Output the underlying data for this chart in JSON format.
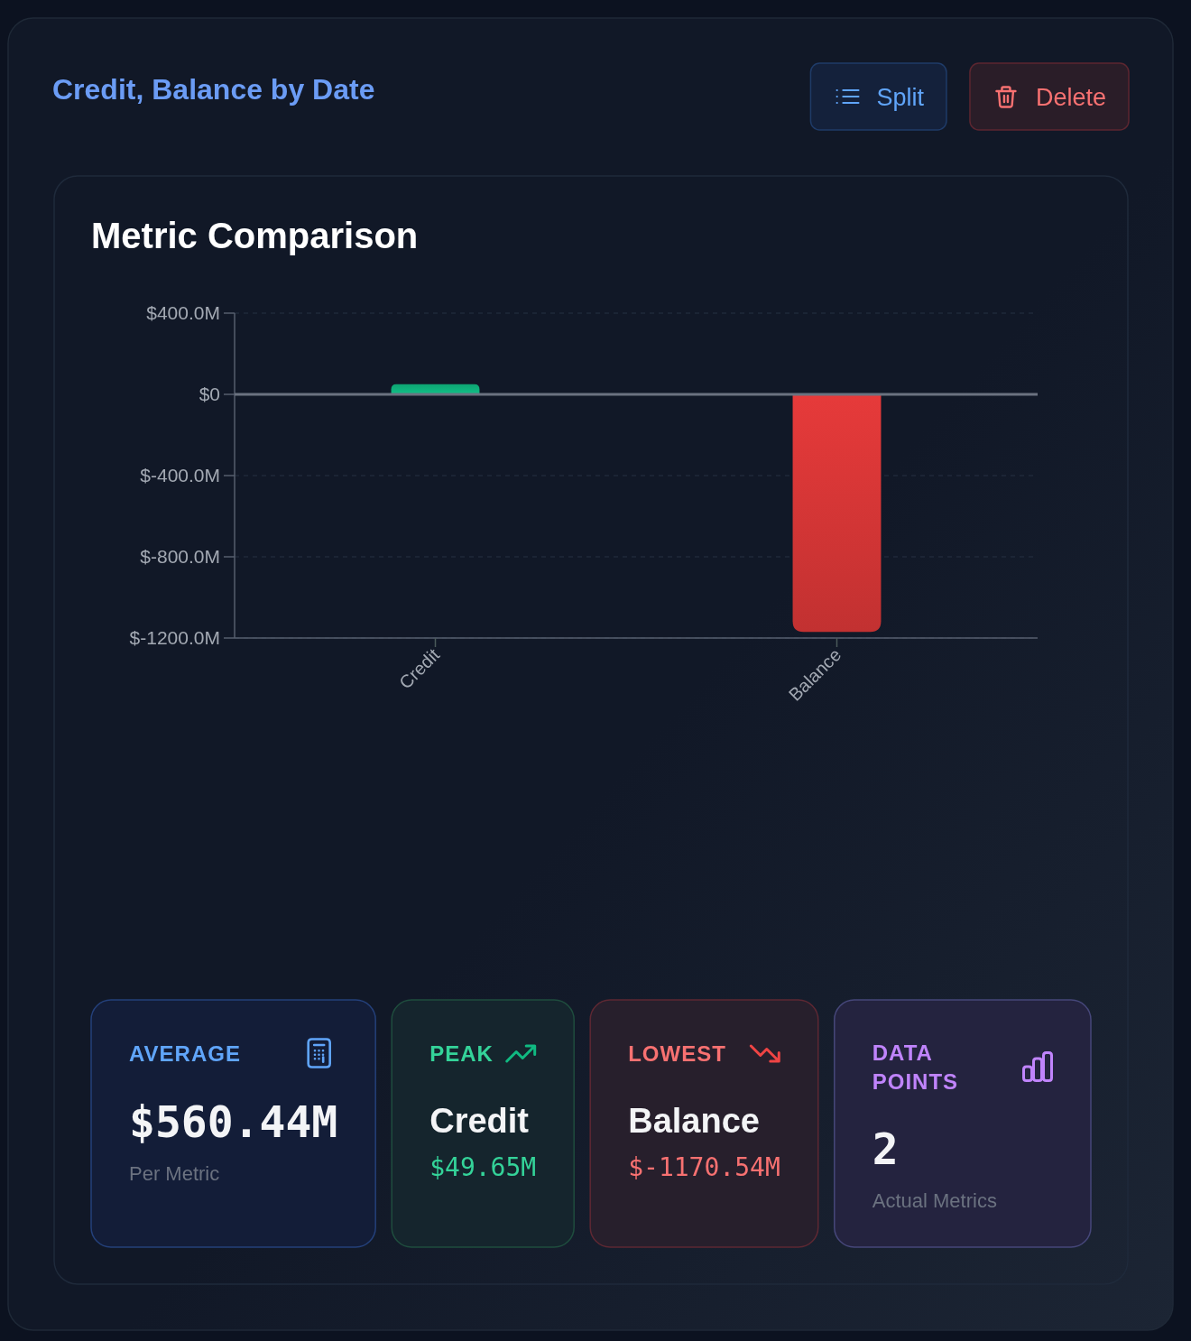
{
  "chart_data": [
    {
      "type": "bar",
      "title": "Credit, Balance by Date",
      "subtitle": "Metric Comparison",
      "annotations": [
        "Split",
        "Delete"
      ],
      "categories": [
        "Credit",
        "Balance"
      ],
      "values": [
        49.65,
        -1170.54
      ],
      "colors": [
        "#10b981",
        "#dc3838"
      ],
      "ylim": [
        -1200,
        400
      ],
      "yticks": [
        {
          "value": -1200,
          "label": "$-1200.0M"
        },
        {
          "value": -800,
          "label": "$-800.0M"
        },
        {
          "value": -400,
          "label": "$-400.0M"
        },
        {
          "value": 0,
          "label": "$0"
        },
        {
          "value": 400,
          "label": "$400.0M"
        }
      ],
      "grid": "y",
      "ref_lines": [
        {
          "axis": "y",
          "value": 0,
          "color": "#6b7280"
        }
      ]
    },
    {
      "type": "other",
      "title": "AVERAGE",
      "annotations": [
        "$560.44M",
        "Per Metric"
      ]
    },
    {
      "type": "other",
      "title": "PEAK",
      "annotations": [
        "Credit",
        "$49.65M"
      ]
    },
    {
      "type": "other",
      "title": "LOWEST",
      "annotations": [
        "Balance",
        "$-1170.54M"
      ]
    },
    {
      "type": "other",
      "title": "DATA POINTS",
      "annotations": [
        "2",
        "Actual Metrics"
      ]
    }
  ]
}
